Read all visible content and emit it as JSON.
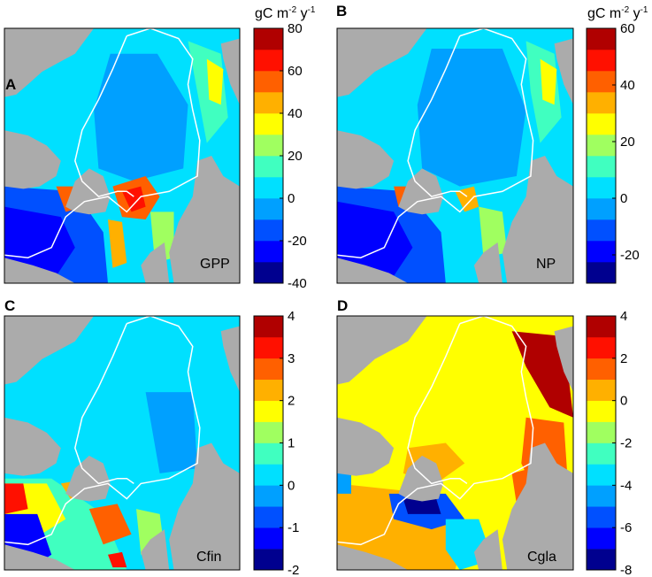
{
  "figure": {
    "colors": {
      "land": "#ababab",
      "coast": "#ffffff",
      "colormap": [
        "#00008f",
        "#0000ff",
        "#0050ff",
        "#00a0ff",
        "#00e0ff",
        "#40ffc0",
        "#a0ff60",
        "#ffff00",
        "#ffb000",
        "#ff6000",
        "#ff1000",
        "#b00000"
      ]
    }
  },
  "chart_data": [
    {
      "type": "heatmap",
      "panel": "A",
      "inset_label": "GPP",
      "colorbar_unit": {
        "base": "gC m",
        "exp1": "-2",
        "mid": " y",
        "exp2": "-1"
      },
      "colorbar_ticks": [
        "80",
        "60",
        "40",
        "20",
        "0",
        "-20",
        "-40"
      ],
      "vlim": [
        -40,
        80
      ],
      "map": "gpp"
    },
    {
      "type": "heatmap",
      "panel": "B",
      "inset_label": "NP",
      "colorbar_unit": {
        "base": "gC m",
        "exp1": "-2",
        "mid": " y",
        "exp2": "-1"
      },
      "colorbar_ticks": [
        "60",
        "40",
        "20",
        "0",
        "-20"
      ],
      "vlim": [
        -30,
        60
      ],
      "map": "np"
    },
    {
      "type": "heatmap",
      "panel": "C",
      "inset_label": "Cfin",
      "colorbar_ticks": [
        "4",
        "3",
        "2",
        "1",
        "0",
        "-1",
        "-2"
      ],
      "vlim": [
        -2,
        4
      ],
      "map": "cfin"
    },
    {
      "type": "heatmap",
      "panel": "D",
      "inset_label": "Cgla",
      "colorbar_ticks": [
        "4",
        "2",
        "0",
        "-2",
        "-4",
        "-6",
        "-8"
      ],
      "vlim": [
        -8,
        4
      ],
      "map": "cgla"
    }
  ]
}
